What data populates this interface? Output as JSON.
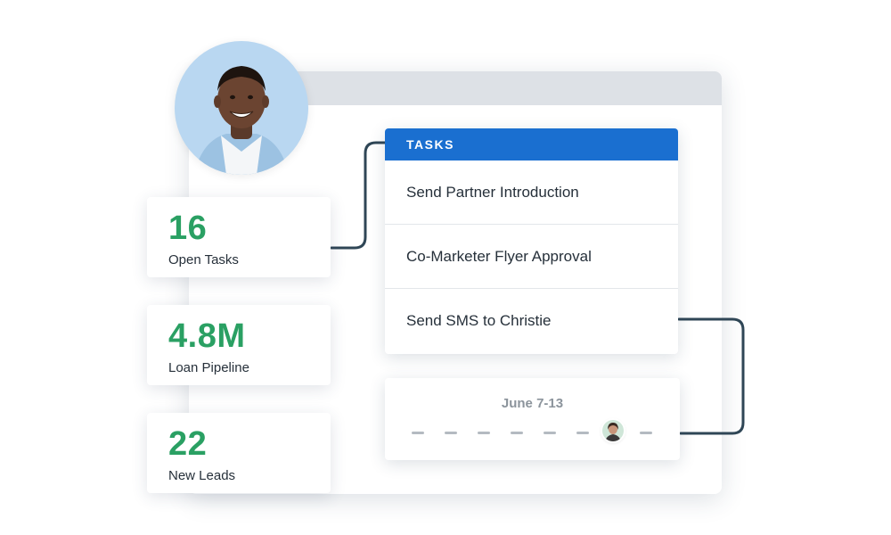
{
  "stats": [
    {
      "value": "16",
      "label": "Open Tasks"
    },
    {
      "value": "4.8M",
      "label": "Loan Pipeline"
    },
    {
      "value": "22",
      "label": "New Leads"
    }
  ],
  "tasks": {
    "header": "TASKS",
    "items": [
      {
        "label": "Send Partner Introduction"
      },
      {
        "label": "Co-Marketer Flyer Approval"
      },
      {
        "label": "Send SMS to Christie"
      }
    ]
  },
  "calendar": {
    "date_range": "June 7-13"
  },
  "colors": {
    "accent_blue": "#1a6fd0",
    "stat_green": "#2aa063",
    "connector": "#2f4656"
  },
  "icons": {
    "main_avatar": "user-avatar-photo",
    "small_avatar": "contact-avatar-photo"
  }
}
